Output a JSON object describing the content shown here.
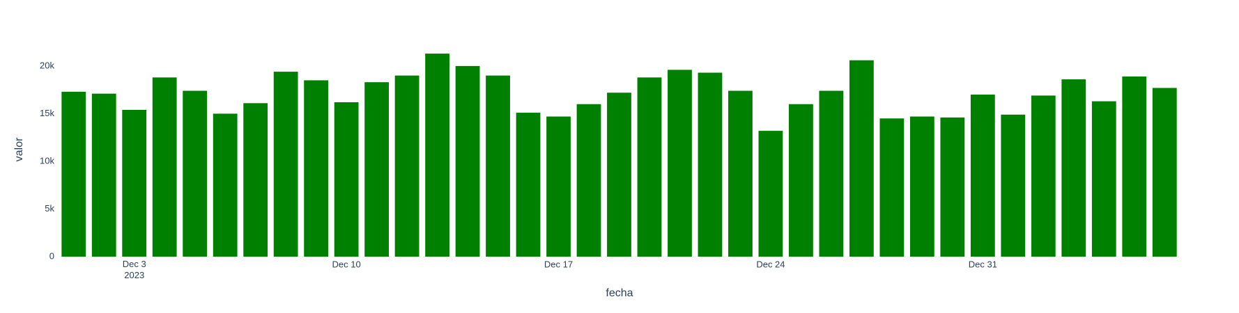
{
  "chart_data": {
    "type": "bar",
    "x_label": "fecha",
    "y_label": "valor",
    "x": [
      "2023-12-01",
      "2023-12-02",
      "2023-12-03",
      "2023-12-04",
      "2023-12-05",
      "2023-12-06",
      "2023-12-07",
      "2023-12-08",
      "2023-12-09",
      "2023-12-10",
      "2023-12-11",
      "2023-12-12",
      "2023-12-13",
      "2023-12-14",
      "2023-12-15",
      "2023-12-16",
      "2023-12-17",
      "2023-12-18",
      "2023-12-19",
      "2023-12-20",
      "2023-12-21",
      "2023-12-22",
      "2023-12-23",
      "2023-12-24",
      "2023-12-25",
      "2023-12-26",
      "2023-12-27",
      "2023-12-28",
      "2023-12-29",
      "2023-12-30",
      "2023-12-31",
      "2024-01-01",
      "2024-01-02",
      "2024-01-03",
      "2024-01-04",
      "2024-01-05",
      "2024-01-06"
    ],
    "values": [
      17300,
      17100,
      15400,
      18800,
      17400,
      15000,
      16100,
      19400,
      18500,
      16200,
      18300,
      19000,
      21300,
      20000,
      19000,
      15100,
      14700,
      16000,
      17200,
      18800,
      19600,
      19300,
      17400,
      13200,
      16000,
      17400,
      20600,
      14500,
      14700,
      14600,
      17000,
      14900,
      16900,
      18600,
      16300,
      18900,
      17700
    ],
    "color": "#008000",
    "xlim": [
      "2023-11-30T12:00",
      "2024-01-06T12:00"
    ],
    "xticks": [
      {
        "value": "2023-12-03",
        "label": "Dec 3\n2023"
      },
      {
        "value": "2023-12-10",
        "label": "Dec 10"
      },
      {
        "value": "2023-12-17",
        "label": "Dec 17"
      },
      {
        "value": "2023-12-24",
        "label": "Dec 24"
      },
      {
        "value": "2023-12-31",
        "label": "Dec 31"
      }
    ],
    "ylim": [
      0,
      22400
    ],
    "yticks": [
      0,
      {
        "value": 5000,
        "label": "5k"
      },
      {
        "value": 10000,
        "label": "10k"
      },
      {
        "value": 15000,
        "label": "15k"
      },
      {
        "value": 20000,
        "label": "20k"
      }
    ],
    "grid": false
  }
}
